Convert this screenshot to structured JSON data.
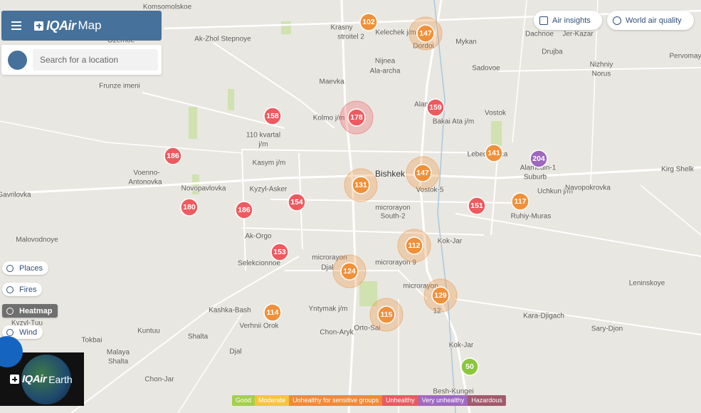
{
  "header": {
    "brand": "IQAir",
    "product": "Map"
  },
  "search": {
    "placeholder": "Search for a location"
  },
  "top_buttons": [
    "Air insights",
    "World air quality"
  ],
  "layers": [
    "Places",
    "Fires",
    "Heatmap",
    "Wind"
  ],
  "earth_card": {
    "brand": "IQAir",
    "product": "Earth"
  },
  "places": [
    "Komsomolskoe",
    "Ak-Zhol Stepnoye",
    "Ozernoe",
    "Frunze imeni",
    "Krasny",
    "stroitel 2",
    "Kelechek j/m",
    "Dordoi",
    "Mykan",
    "Dachnoe",
    "Jer-Kazar",
    "Drujba",
    "Pervomay",
    "Nijnea",
    "Ala-archa",
    "Sadovoe",
    "Nizhniy",
    "Norus",
    "Maevka",
    "Kolmo j/m",
    "Alamedin",
    "Bakai Ata j/m",
    "Vostok",
    "Lebedinovka",
    "Alamedin-1",
    "Suburb",
    "Kirg Shelk",
    "110 kvartal",
    "j/m",
    "Kasym j/m",
    "Voenno-",
    "Antonovka",
    "Bishkek",
    "Vostok-5",
    "Novopavlovka",
    "Kyzyl-Asker",
    "Uchkun j/m",
    "Navopokrovka",
    "Gavrilovka",
    "microrayon",
    "South-2",
    "Ruhiy-Muras",
    "Malovodnoye",
    "Ak-Orgo",
    "Kok-Jar",
    "Selekcionnoe",
    "microrayon",
    "Djal",
    "microrayon 9",
    "microrayon",
    "12",
    "Leninskoye",
    "Kashka-Bash",
    "Yntymak j/m",
    "Verhnii Orok",
    "Orto-Sai",
    "Chon-Aryk",
    "Kuntuu",
    "Shalta",
    "Tokbai",
    "Kyzyl-Tuu",
    "Malaya",
    "Shalta",
    "Djal",
    "Kok-Jar",
    "Chon-Jar",
    "Kara-Djigach",
    "Sary-Djon",
    "Besh-Kungei"
  ],
  "stations": [
    {
      "aqi": 102,
      "color": "#f0913a",
      "cluster": false
    },
    {
      "aqi": 147,
      "color": "#f0913a",
      "cluster": true
    },
    {
      "aqi": 178,
      "color": "#ee5a5f",
      "cluster": true
    },
    {
      "aqi": 158,
      "color": "#ee5a5f",
      "cluster": false
    },
    {
      "aqi": 159,
      "color": "#ee5a5f",
      "cluster": false
    },
    {
      "aqi": 186,
      "color": "#ee5a5f",
      "cluster": false
    },
    {
      "aqi": 141,
      "color": "#f0913a",
      "cluster": false
    },
    {
      "aqi": 204,
      "color": "#9d68bd",
      "cluster": false
    },
    {
      "aqi": 147,
      "color": "#f0913a",
      "cluster": true
    },
    {
      "aqi": 131,
      "color": "#f0913a",
      "cluster": true
    },
    {
      "aqi": 154,
      "color": "#ee5a5f",
      "cluster": false
    },
    {
      "aqi": 180,
      "color": "#ee5a5f",
      "cluster": false
    },
    {
      "aqi": 186,
      "color": "#ee5a5f",
      "cluster": false
    },
    {
      "aqi": 151,
      "color": "#ee5a5f",
      "cluster": false
    },
    {
      "aqi": 117,
      "color": "#f0913a",
      "cluster": false
    },
    {
      "aqi": 153,
      "color": "#ee5a5f",
      "cluster": false
    },
    {
      "aqi": 112,
      "color": "#f0913a",
      "cluster": true
    },
    {
      "aqi": 124,
      "color": "#f0913a",
      "cluster": true
    },
    {
      "aqi": 129,
      "color": "#f0913a",
      "cluster": true
    },
    {
      "aqi": 114,
      "color": "#f0913a",
      "cluster": false
    },
    {
      "aqi": 115,
      "color": "#f0913a",
      "cluster": true
    },
    {
      "aqi": 50,
      "color": "#8cc63f",
      "cluster": false
    }
  ],
  "legend": [
    {
      "label": "Good",
      "color": "#a3cf4f"
    },
    {
      "label": "Moderate",
      "color": "#f3c63c"
    },
    {
      "label": "Unhealthy for sensitive groups",
      "color": "#ef8a3b"
    },
    {
      "label": "Unhealthy",
      "color": "#ec5a61"
    },
    {
      "label": "Very unhealthy",
      "color": "#a06ac0"
    },
    {
      "label": "Hazardous",
      "color": "#a25a6d"
    }
  ]
}
